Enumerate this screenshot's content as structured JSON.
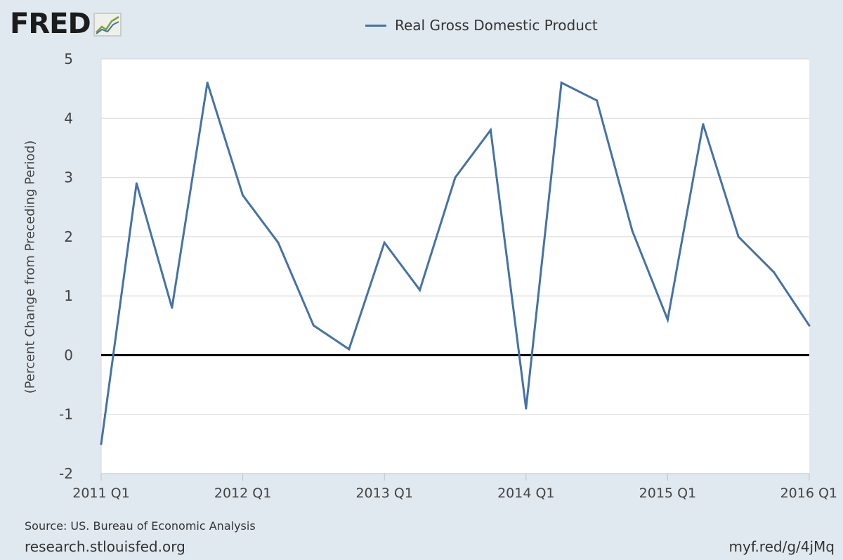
{
  "logo": {
    "text": "FRED",
    "mark": "fred-chart-icon"
  },
  "legend": {
    "label": "Real Gross Domestic Product",
    "color": "#4572a7"
  },
  "chart_data": {
    "type": "line",
    "title": "",
    "xlabel": "",
    "ylabel": "(Percent Change from Preceding Period)",
    "ylim": [
      -2,
      5
    ],
    "yticks": [
      -2,
      -1,
      0,
      1,
      2,
      3,
      4,
      5
    ],
    "xticks": [
      "2011 Q1",
      "2012 Q1",
      "2013 Q1",
      "2014 Q1",
      "2015 Q1",
      "2016 Q1"
    ],
    "zero_line": true,
    "grid": true,
    "series": [
      {
        "name": "Real Gross Domestic Product",
        "color": "#4572a7",
        "x": [
          "2011 Q1",
          "2011 Q2",
          "2011 Q3",
          "2011 Q4",
          "2012 Q1",
          "2012 Q2",
          "2012 Q3",
          "2012 Q4",
          "2013 Q1",
          "2013 Q2",
          "2013 Q3",
          "2013 Q4",
          "2014 Q1",
          "2014 Q2",
          "2014 Q3",
          "2014 Q4",
          "2015 Q1",
          "2015 Q2",
          "2015 Q3",
          "2015 Q4",
          "2016 Q1"
        ],
        "values": [
          -1.5,
          2.9,
          0.8,
          4.6,
          2.7,
          1.9,
          0.5,
          0.1,
          1.9,
          1.1,
          3.0,
          3.8,
          -0.9,
          4.6,
          4.3,
          2.1,
          0.6,
          3.9,
          2.0,
          1.4,
          0.5
        ]
      }
    ]
  },
  "footer": {
    "source": "Source: US. Bureau of Economic Analysis",
    "site": "research.stlouisfed.org",
    "shortlink": "myf.red/g/4jMq"
  }
}
